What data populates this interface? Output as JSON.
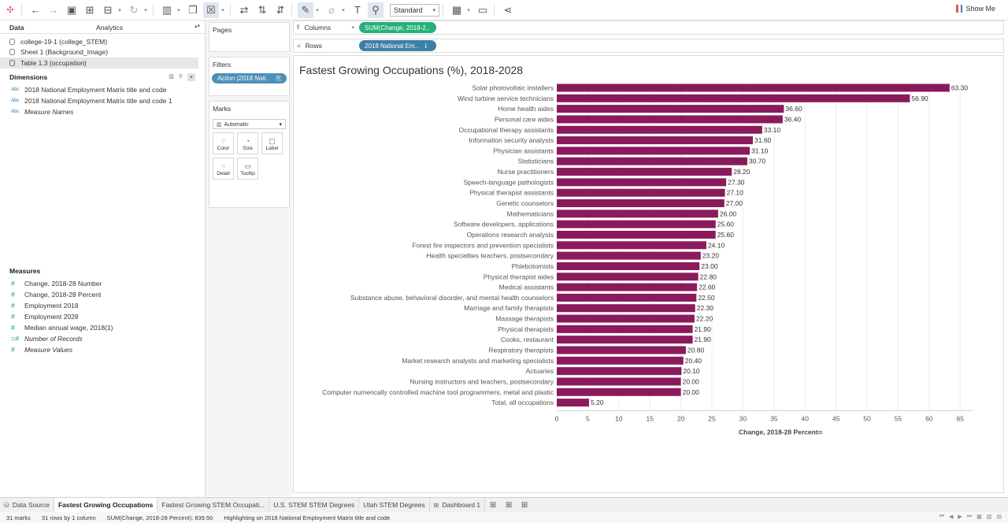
{
  "toolbar": {
    "fit_label": "Standard",
    "show_me_label": "Show Me"
  },
  "data_pane": {
    "tab_data": "Data",
    "tab_analytics": "Analytics",
    "datasources": [
      "college-19-1 (college_STEM)",
      "Sheet 1 (Background_Image)",
      "Table 1.3 (occupation)"
    ],
    "dimensions_title": "Dimensions",
    "dimensions": [
      {
        "type": "Abc",
        "name": "2018 National Employment Matrix title and code",
        "italic": false
      },
      {
        "type": "Abc",
        "name": "2018 National Employment Matrix title and code 1",
        "italic": false
      },
      {
        "type": "Abc",
        "name": "Measure Names",
        "italic": true
      }
    ],
    "measures_title": "Measures",
    "measures": [
      {
        "type": "#",
        "name": "Change, 2018-28 Number",
        "italic": false
      },
      {
        "type": "#",
        "name": "Change, 2018-28 Percent",
        "italic": false
      },
      {
        "type": "#",
        "name": "Employment 2018",
        "italic": false
      },
      {
        "type": "#",
        "name": "Employment 2028",
        "italic": false
      },
      {
        "type": "#",
        "name": "Median annual wage, 2018(1)",
        "italic": false
      },
      {
        "type": "=#",
        "name": "Number of Records",
        "italic": true
      },
      {
        "type": "#",
        "name": "Measure Values",
        "italic": true
      }
    ]
  },
  "cards": {
    "pages_title": "Pages",
    "filters_title": "Filters",
    "filter_pill": "Action (2018 Nati..",
    "marks_title": "Marks",
    "marks_type": "Automatic",
    "mark_buttons": [
      "Color",
      "Size",
      "Label",
      "Detail",
      "Tooltip"
    ]
  },
  "shelves": {
    "columns_label": "Columns",
    "columns_pill": "SUM(Change, 2018-2..",
    "rows_label": "Rows",
    "rows_pill": "2018 National Em.."
  },
  "worksheet": {
    "title": "Fastest Growing Occupations (%), 2018-2028"
  },
  "chart_data": {
    "type": "bar",
    "orientation": "horizontal",
    "bar_color": "#8b1a5c",
    "categories": [
      "Solar photovoltaic installers",
      "Wind turbine service technicians",
      "Home health aides",
      "Personal care aides",
      "Occupational therapy assistants",
      "Information security analysts",
      "Physician assistants",
      "Statisticians",
      "Nurse practitioners",
      "Speech-language pathologists",
      "Physical therapist assistants",
      "Genetic counselors",
      "Mathematicians",
      "Software developers, applications",
      "Operations research analysts",
      "Forest fire inspectors and prevention specialists",
      "Health specialties teachers, postsecondary",
      "Phlebotomists",
      "Physical therapist aides",
      "Medical assistants",
      "Substance abuse, behavioral disorder, and mental health counselors",
      "Marriage and family therapists",
      "Massage therapists",
      "Physical therapists",
      "Cooks, restaurant",
      "Respiratory therapists",
      "Market research analysts and marketing specialists",
      "Actuaries",
      "Nursing instructors and teachers, postsecondary",
      "Computer numerically controlled machine tool programmers, metal and plastic",
      "Total, all occupations"
    ],
    "values": [
      63.3,
      56.9,
      36.6,
      36.4,
      33.1,
      31.6,
      31.1,
      30.7,
      28.2,
      27.3,
      27.1,
      27.0,
      26.0,
      25.6,
      25.6,
      24.1,
      23.2,
      23.0,
      22.8,
      22.6,
      22.5,
      22.3,
      22.2,
      21.9,
      21.9,
      20.8,
      20.4,
      20.1,
      20.0,
      20.0,
      5.2
    ],
    "value_labels": [
      "63.30",
      "56.90",
      "36.60",
      "36.40",
      "33.10",
      "31.60",
      "31.10",
      "30.70",
      "28.20",
      "27.30",
      "27.10",
      "27.00",
      "26.00",
      "25.60",
      "25.60",
      "24.10",
      "23.20",
      "23.00",
      "22.80",
      "22.60",
      "22.50",
      "22.30",
      "22.20",
      "21.90",
      "21.90",
      "20.80",
      "20.40",
      "20.10",
      "20.00",
      "20.00",
      "5.20"
    ],
    "xlabel": "Change, 2018-28 Percent",
    "xticks": [
      0,
      5,
      10,
      15,
      20,
      25,
      30,
      35,
      40,
      45,
      50,
      55,
      60,
      65
    ],
    "xlim": [
      0,
      67
    ],
    "grid": true
  },
  "sheet_tabs": {
    "data_source": "Data Source",
    "tabs": [
      "Fastest Growing Occupations",
      "Fastest Growing STEM Occupati...",
      "U.S. STEM STEM Degrees",
      "Utah STEM Degrees",
      "Dashboard 1"
    ]
  },
  "status": {
    "marks": "31 marks",
    "rows_cols": "31 rows by 1 column",
    "sum": "SUM(Change, 2018-28 Percent): 839.50",
    "highlight": "Highlighting on 2018 National Employment Matrix title and code"
  }
}
